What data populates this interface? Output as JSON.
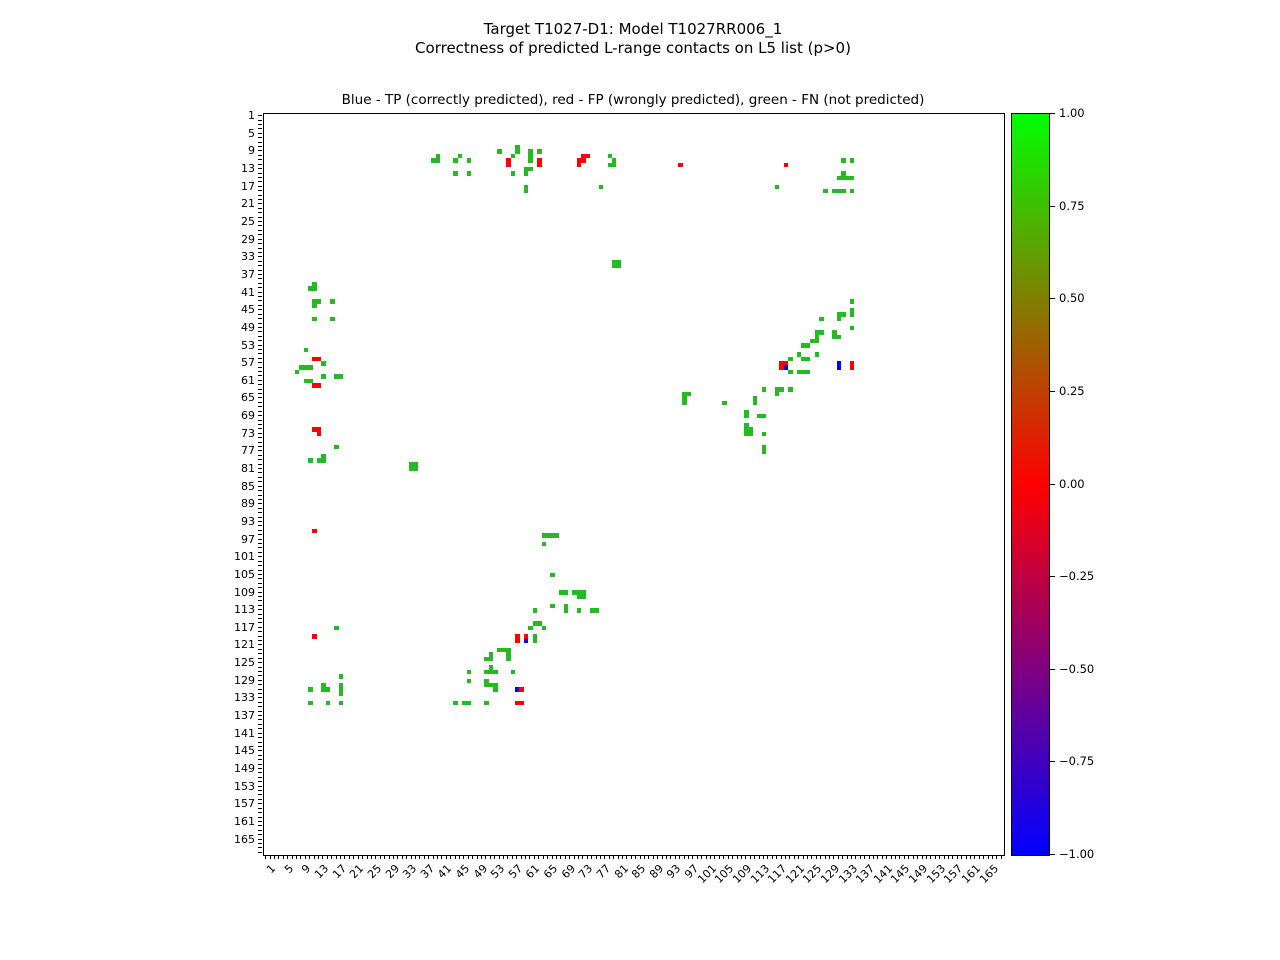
{
  "figure": {
    "suptitle_line1": "Target T1027-D1: Model T1027RR006_1",
    "suptitle_line2": "Correctness of predicted L-range contacts on L5 list (p>0)",
    "axes_title": "Blue - TP (correctly predicted), red - FP (wrongly predicted), green - FN (not predicted)"
  },
  "chart_data": {
    "type": "heatmap",
    "title": "Correctness of predicted L-range contacts on L5 list (p>0)",
    "axes_note": "residue index vs residue index contact map",
    "x_axis": {
      "range": [
        1,
        168
      ],
      "tick_labels": [
        1,
        5,
        9,
        13,
        17,
        21,
        25,
        29,
        33,
        37,
        41,
        45,
        49,
        53,
        57,
        61,
        65,
        69,
        73,
        77,
        81,
        85,
        89,
        93,
        97,
        101,
        105,
        109,
        113,
        117,
        121,
        125,
        129,
        133,
        137,
        141,
        145,
        149,
        153,
        157,
        161,
        165
      ],
      "minor_tick_every": 1,
      "label_rotation_deg": 45
    },
    "y_axis": {
      "range": [
        1,
        168
      ],
      "tick_labels": [
        1,
        5,
        9,
        13,
        17,
        21,
        25,
        29,
        33,
        37,
        41,
        45,
        49,
        53,
        57,
        61,
        65,
        69,
        73,
        77,
        81,
        85,
        89,
        93,
        97,
        101,
        105,
        109,
        113,
        117,
        121,
        125,
        129,
        133,
        137,
        141,
        145,
        149,
        153,
        157,
        161,
        165
      ],
      "minor_tick_every": 1
    },
    "grid": false,
    "colorbar": {
      "colormap": "brg",
      "min": -1,
      "max": 1,
      "tick_values": [
        1.0,
        0.75,
        0.5,
        0.25,
        0.0,
        -0.25,
        -0.5,
        -0.75,
        -1.0
      ],
      "tick_labels": [
        "1.00",
        "0.75",
        "0.50",
        "0.25",
        "0.00",
        "−0.25",
        "−0.50",
        "−0.75",
        "−1.00"
      ]
    },
    "series": [
      {
        "name": "TP (correctly predicted)",
        "key": "b",
        "color": "#0000ff"
      },
      {
        "name": "FP (wrongly predicted)",
        "key": "r",
        "color": "#ff0000"
      },
      {
        "name": "FN (not predicted)",
        "key": "g",
        "color": "#22bb22"
      }
    ],
    "colors": {
      "g": "#22bb22",
      "r": "#ff0000",
      "b": "#0000ff"
    },
    "points": [
      [
        40,
        10,
        "g"
      ],
      [
        39,
        11,
        "g"
      ],
      [
        40,
        11,
        "g"
      ],
      [
        45,
        10,
        "g"
      ],
      [
        44,
        11,
        "g"
      ],
      [
        47,
        11,
        "g"
      ],
      [
        44,
        14,
        "g"
      ],
      [
        47,
        14,
        "g"
      ],
      [
        54,
        9,
        "g"
      ],
      [
        58,
        8,
        "g"
      ],
      [
        58,
        9,
        "g"
      ],
      [
        57,
        10,
        "g"
      ],
      [
        61,
        9,
        "g"
      ],
      [
        61,
        10,
        "g"
      ],
      [
        61,
        11,
        "g"
      ],
      [
        63,
        9,
        "g"
      ],
      [
        60,
        13,
        "g"
      ],
      [
        61,
        13,
        "g"
      ],
      [
        60,
        14,
        "g"
      ],
      [
        57,
        14,
        "g"
      ],
      [
        60,
        17,
        "g"
      ],
      [
        60,
        18,
        "g"
      ],
      [
        56,
        11,
        "r"
      ],
      [
        56,
        12,
        "r"
      ],
      [
        63,
        11,
        "r"
      ],
      [
        63,
        12,
        "r"
      ],
      [
        73,
        10,
        "r"
      ],
      [
        74,
        10,
        "r"
      ],
      [
        72,
        11,
        "r"
      ],
      [
        73,
        11,
        "r"
      ],
      [
        72,
        12,
        "r"
      ],
      [
        79,
        10,
        "g"
      ],
      [
        80,
        11,
        "g"
      ],
      [
        79,
        12,
        "g"
      ],
      [
        80,
        12,
        "g"
      ],
      [
        77,
        17,
        "g"
      ],
      [
        95,
        12,
        "r"
      ],
      [
        119,
        12,
        "r"
      ],
      [
        117,
        17,
        "g"
      ],
      [
        132,
        11,
        "g"
      ],
      [
        134,
        11,
        "g"
      ],
      [
        132,
        14,
        "g"
      ],
      [
        131,
        15,
        "g"
      ],
      [
        132,
        15,
        "g"
      ],
      [
        133,
        15,
        "g"
      ],
      [
        134,
        15,
        "g"
      ],
      [
        128,
        18,
        "g"
      ],
      [
        130,
        18,
        "g"
      ],
      [
        131,
        18,
        "g"
      ],
      [
        132,
        18,
        "g"
      ],
      [
        134,
        18,
        "g"
      ],
      [
        80,
        34,
        "g"
      ],
      [
        81,
        34,
        "g"
      ],
      [
        80,
        35,
        "g"
      ],
      [
        81,
        35,
        "g"
      ],
      [
        12,
        39,
        "g"
      ],
      [
        11,
        40,
        "g"
      ],
      [
        12,
        40,
        "g"
      ],
      [
        12,
        43,
        "g"
      ],
      [
        13,
        43,
        "g"
      ],
      [
        16,
        43,
        "g"
      ],
      [
        12,
        44,
        "g"
      ],
      [
        12,
        47,
        "g"
      ],
      [
        16,
        47,
        "g"
      ],
      [
        10,
        54,
        "g"
      ],
      [
        12,
        56,
        "r"
      ],
      [
        13,
        56,
        "r"
      ],
      [
        14,
        57,
        "g"
      ],
      [
        9,
        58,
        "g"
      ],
      [
        10,
        58,
        "g"
      ],
      [
        11,
        58,
        "g"
      ],
      [
        8,
        59,
        "g"
      ],
      [
        14,
        60,
        "g"
      ],
      [
        17,
        60,
        "g"
      ],
      [
        18,
        60,
        "g"
      ],
      [
        10,
        61,
        "g"
      ],
      [
        11,
        61,
        "g"
      ],
      [
        12,
        62,
        "r"
      ],
      [
        13,
        62,
        "r"
      ],
      [
        12,
        72,
        "r"
      ],
      [
        13,
        72,
        "r"
      ],
      [
        13,
        73,
        "r"
      ],
      [
        17,
        76,
        "g"
      ],
      [
        14,
        78,
        "g"
      ],
      [
        11,
        79,
        "g"
      ],
      [
        13,
        79,
        "g"
      ],
      [
        14,
        79,
        "g"
      ],
      [
        12,
        95,
        "r"
      ],
      [
        34,
        80,
        "g"
      ],
      [
        35,
        80,
        "g"
      ],
      [
        34,
        81,
        "g"
      ],
      [
        35,
        81,
        "g"
      ],
      [
        134,
        43,
        "g"
      ],
      [
        134,
        45,
        "g"
      ],
      [
        134,
        46,
        "g"
      ],
      [
        131,
        46,
        "g"
      ],
      [
        132,
        46,
        "g"
      ],
      [
        131,
        47,
        "g"
      ],
      [
        127,
        47,
        "g"
      ],
      [
        134,
        49,
        "g"
      ],
      [
        126,
        50,
        "g"
      ],
      [
        127,
        50,
        "g"
      ],
      [
        130,
        50,
        "g"
      ],
      [
        126,
        51,
        "g"
      ],
      [
        130,
        51,
        "g"
      ],
      [
        131,
        51,
        "g"
      ],
      [
        126,
        52,
        "g"
      ],
      [
        125,
        52,
        "g"
      ],
      [
        123,
        53,
        "g"
      ],
      [
        124,
        53,
        "g"
      ],
      [
        122,
        55,
        "g"
      ],
      [
        126,
        55,
        "g"
      ],
      [
        120,
        56,
        "g"
      ],
      [
        123,
        56,
        "g"
      ],
      [
        124,
        56,
        "g"
      ],
      [
        118,
        57,
        "r"
      ],
      [
        119,
        57,
        "r"
      ],
      [
        118,
        58,
        "r"
      ],
      [
        119,
        58,
        "b"
      ],
      [
        131,
        57,
        "b"
      ],
      [
        131,
        58,
        "b"
      ],
      [
        134,
        57,
        "r"
      ],
      [
        134,
        58,
        "r"
      ],
      [
        120,
        59,
        "g"
      ],
      [
        122,
        59,
        "g"
      ],
      [
        123,
        59,
        "g"
      ],
      [
        124,
        59,
        "g"
      ],
      [
        96,
        64,
        "g"
      ],
      [
        97,
        64,
        "g"
      ],
      [
        96,
        65,
        "g"
      ],
      [
        96,
        66,
        "g"
      ],
      [
        105,
        66,
        "g"
      ],
      [
        112,
        65,
        "g"
      ],
      [
        112,
        66,
        "g"
      ],
      [
        114,
        63,
        "g"
      ],
      [
        117,
        63,
        "g"
      ],
      [
        118,
        63,
        "g"
      ],
      [
        117,
        64,
        "g"
      ],
      [
        120,
        63,
        "g"
      ],
      [
        110,
        68,
        "g"
      ],
      [
        110,
        69,
        "g"
      ],
      [
        113,
        69,
        "g"
      ],
      [
        114,
        69,
        "g"
      ],
      [
        110,
        71,
        "g"
      ],
      [
        110,
        72,
        "g"
      ],
      [
        111,
        72,
        "g"
      ],
      [
        110,
        73,
        "g"
      ],
      [
        111,
        73,
        "g"
      ],
      [
        114,
        73,
        "g"
      ],
      [
        114,
        76,
        "g"
      ],
      [
        114,
        77,
        "g"
      ],
      [
        64,
        96,
        "g"
      ],
      [
        65,
        96,
        "g"
      ],
      [
        66,
        96,
        "g"
      ],
      [
        67,
        96,
        "g"
      ],
      [
        64,
        98,
        "g"
      ],
      [
        66,
        105,
        "g"
      ],
      [
        68,
        109,
        "g"
      ],
      [
        69,
        109,
        "g"
      ],
      [
        71,
        109,
        "g"
      ],
      [
        72,
        109,
        "g"
      ],
      [
        73,
        109,
        "g"
      ],
      [
        72,
        110,
        "g"
      ],
      [
        73,
        110,
        "g"
      ],
      [
        66,
        112,
        "g"
      ],
      [
        69,
        112,
        "g"
      ],
      [
        62,
        113,
        "g"
      ],
      [
        69,
        113,
        "g"
      ],
      [
        72,
        113,
        "g"
      ],
      [
        75,
        113,
        "g"
      ],
      [
        76,
        113,
        "g"
      ],
      [
        62,
        116,
        "g"
      ],
      [
        63,
        116,
        "g"
      ],
      [
        61,
        117,
        "g"
      ],
      [
        64,
        117,
        "g"
      ],
      [
        58,
        119,
        "r"
      ],
      [
        58,
        120,
        "r"
      ],
      [
        60,
        119,
        "r"
      ],
      [
        60,
        120,
        "b"
      ],
      [
        62,
        119,
        "g"
      ],
      [
        62,
        120,
        "g"
      ],
      [
        54,
        122,
        "g"
      ],
      [
        55,
        122,
        "g"
      ],
      [
        56,
        122,
        "g"
      ],
      [
        52,
        123,
        "g"
      ],
      [
        56,
        123,
        "g"
      ],
      [
        51,
        124,
        "g"
      ],
      [
        52,
        124,
        "g"
      ],
      [
        56,
        124,
        "g"
      ],
      [
        47,
        127,
        "g"
      ],
      [
        52,
        126,
        "g"
      ],
      [
        51,
        127,
        "g"
      ],
      [
        52,
        127,
        "g"
      ],
      [
        53,
        127,
        "g"
      ],
      [
        57,
        127,
        "g"
      ],
      [
        47,
        129,
        "g"
      ],
      [
        51,
        129,
        "g"
      ],
      [
        51,
        130,
        "g"
      ],
      [
        52,
        130,
        "g"
      ],
      [
        53,
        130,
        "g"
      ],
      [
        53,
        131,
        "g"
      ],
      [
        58,
        131,
        "b"
      ],
      [
        59,
        131,
        "r"
      ],
      [
        44,
        134,
        "g"
      ],
      [
        46,
        134,
        "g"
      ],
      [
        47,
        134,
        "g"
      ],
      [
        51,
        134,
        "g"
      ],
      [
        58,
        134,
        "r"
      ],
      [
        59,
        134,
        "r"
      ],
      [
        17,
        117,
        "g"
      ],
      [
        12,
        119,
        "r"
      ],
      [
        18,
        128,
        "g"
      ],
      [
        14,
        130,
        "g"
      ],
      [
        18,
        130,
        "g"
      ],
      [
        11,
        131,
        "g"
      ],
      [
        14,
        131,
        "g"
      ],
      [
        15,
        131,
        "g"
      ],
      [
        18,
        131,
        "g"
      ],
      [
        18,
        132,
        "g"
      ],
      [
        11,
        134,
        "g"
      ],
      [
        15,
        134,
        "g"
      ],
      [
        18,
        134,
        "g"
      ]
    ]
  }
}
